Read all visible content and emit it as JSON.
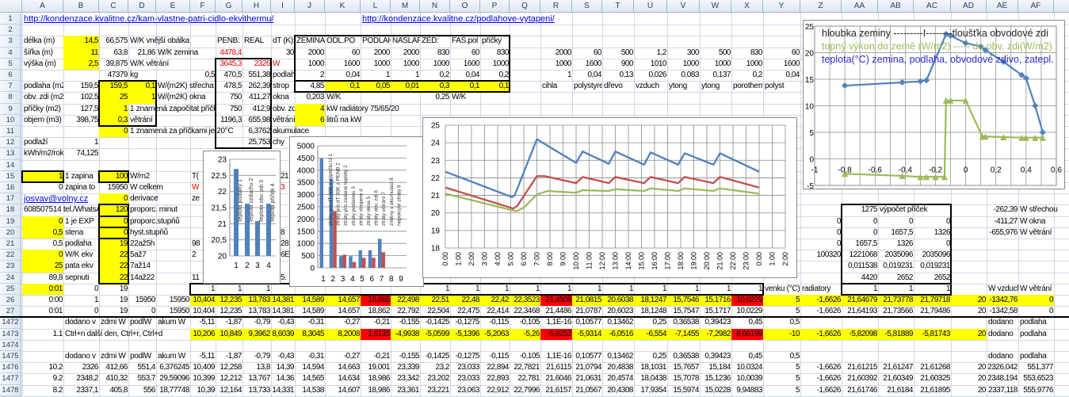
{
  "columns": [
    "A",
    "B",
    "C",
    "D",
    "E",
    "F",
    "G",
    "H",
    "I",
    "J",
    "K",
    "L",
    "M",
    "N",
    "O",
    "P",
    "Q",
    "R",
    "S",
    "T",
    "U",
    "V",
    "W",
    "X",
    "Y",
    "Z",
    "AA",
    "AB",
    "AC",
    "AD",
    "AE",
    "AF"
  ],
  "row_numbers": [
    "1",
    "2",
    "3",
    "4",
    "5",
    "6",
    "7",
    "8",
    "9",
    "10",
    "11",
    "12",
    "13",
    "14",
    "15",
    "16",
    "17",
    "18",
    "19",
    "20",
    "21",
    "22",
    "23",
    "24",
    "25",
    "26",
    "27",
    "1472",
    "1473",
    "1474",
    "1475",
    "1476",
    "1477",
    "1478"
  ],
  "rows": {
    "1": {
      "A": "http://kondenzace.kvalitne.cz/kam-vlastne-patri-cidlo-ekvithermu/",
      "L": "http://kondenzace.kvalitne.cz/podlahove-vytapeni/"
    },
    "3": {
      "A": "délka (m)",
      "B": "14,5",
      "C": "66,575",
      "D": "W/K vnější obálka",
      "G": "PENB:",
      "H": "REAL",
      "I": "dT (K):",
      "J": "ZEMINA",
      "K": "ODL.PO",
      "L": "PODLAHA",
      "M": "NASLAP.",
      "N": "ZEĎ:",
      "O": "FAS.pol",
      "P": "příčky"
    },
    "4": {
      "A": "šířka (m)",
      "B": "11",
      "C": "63,8",
      "D": "21,86",
      "E": "W/K zemina",
      "G": "4478,4",
      "I": "30",
      "J": "2000",
      "K": "60",
      "L": "2000",
      "M": "2000",
      "N": "830",
      "O": "60",
      "P": "830",
      "R": "2000",
      "S": "60",
      "T": "500",
      "U": "1,2",
      "V": "300",
      "W": "500",
      "X": "830",
      "Y": "60"
    },
    "5": {
      "A": "výška (m)",
      "B": "2,5",
      "C": "39,875",
      "D": "W/K větrání",
      "G": "3645,3",
      "H": "2326",
      "I": "W",
      "J": "1000",
      "K": "1600",
      "L": "1000",
      "M": "1000",
      "N": "1000",
      "O": "1600",
      "P": "1000",
      "R": "1000",
      "S": "1600",
      "T": "900",
      "U": "1010",
      "V": "1000",
      "W": "1000",
      "X": "1000",
      "Y": "1600"
    },
    "6": {
      "C": "47379",
      "D": "kg",
      "F": "0,5",
      "G": "470,5",
      "H": "551,38",
      "I": "podlaha",
      "J": "2",
      "K": "0,04",
      "L": "1",
      "M": "1",
      "N": "0,2",
      "O": "0,04",
      "P": "0,2",
      "R": "1",
      "S": "0,04",
      "T": "0,13",
      "U": "0,026",
      "V": "0,083",
      "W": "0,137",
      "X": "0,2",
      "Y": "0,04"
    },
    "7": {
      "A": "podlaha (m2)",
      "B": "159,5",
      "C": "159,5",
      "D": "0,1",
      "E": "W/(m2K) střecha",
      "G": "478,5",
      "H": "262,39",
      "I": "strop",
      "J": "4,85",
      "K": "0,1",
      "L": "0,05",
      "M": "0,01",
      "N": "0,3",
      "O": "0,1",
      "P": "0,1",
      "R": "cihla",
      "S": "polystyren",
      "T": "dřevo",
      "U": "vzduch",
      "V": "ytong",
      "W": "ytong",
      "X": "porotherm",
      "Y": "polyst"
    },
    "8": {
      "A": "obv. zdi (m2)",
      "B": "102,5",
      "C": "25",
      "D": "1",
      "E": "W/(m2K) okna",
      "G": "750",
      "H": "411,27",
      "I": "okna",
      "J": "0,203",
      "K": "W/K",
      "N": "0,25",
      "O": "W/K"
    },
    "9": {
      "A": "příčky (m2)",
      "B": "127,5",
      "C": "1",
      "D": "1 znamená započítat příčky z",
      "G": "750",
      "H": "412,9",
      "I": "obv. zdi",
      "J": "4",
      "K": "kW radiátory 75/65/20"
    },
    "10": {
      "A": "objem (m3)",
      "B": "398,75",
      "C": "0,3",
      "D": "větrání",
      "G": "1196,3",
      "H": "655,98",
      "I": "větrání",
      "J": "6",
      "K": "litrů na kW"
    },
    "11": {
      "C": "0",
      "D": "1 znamená za příčkami je 20°C",
      "H": "6,3762",
      "I": "akumulace"
    },
    "12": {
      "A": "podlaží",
      "B": "1",
      "H": "25,753",
      "I": "chy"
    },
    "13": {
      "A": "kWh/m2/rok",
      "B": "74,125"
    },
    "15": {
      "A": "1",
      "B": "1 zapina",
      "C": "100",
      "D": "W/m2",
      "G": "T(",
      "I": "21"
    },
    "16": {
      "A": "0",
      "B": "zapina to",
      "C": "15950",
      "D": "W celkem",
      "G": "W",
      "I": "3"
    },
    "17": {
      "A": "josvav@volny.cz",
      "C": "0",
      "D": "derivace",
      "G": "ze"
    },
    "18": {
      "A": "608507514 tel./WhatsA",
      "C": "120",
      "D": "proporc. minut",
      "AA": "1275",
      "AB": "výpočet příček",
      "AE": "-262,39",
      "AF": "W střechou"
    },
    "19": {
      "A": "0",
      "B": "1 je EXP",
      "C": "0",
      "D": "proporc.stupňů",
      "Z": "0",
      "AA": "0",
      "AB": "0",
      "AC": "0",
      "AE": "-411,27",
      "AF": "W okna"
    },
    "20": {
      "A": "0,5",
      "B": "stena",
      "C": "0",
      "D": "hyst.stupňů",
      "I": "8",
      "Z": "0",
      "AA": "0",
      "AB": "1657,5",
      "AC": "1326",
      "AE": "-655,976",
      "AF": "W větrání"
    },
    "21": {
      "A": "0,5",
      "B": "podlaha",
      "C": "19",
      "D": "22až5h",
      "G": "98",
      "I": "28",
      "Z": "0",
      "AA": "1657,5",
      "AB": "1326",
      "AC": "0"
    },
    "22": {
      "A": "0",
      "B": "W/K ekv",
      "C": "22",
      "D": "5až7",
      "G": "2",
      "I": "6E",
      "Z": "100320",
      "AA": "1221068",
      "AB": "2035096",
      "AC": "2035096"
    },
    "23": {
      "A": "25",
      "B": "pata ekv",
      "C": "22",
      "D": "7až14",
      "AA": "0,011538",
      "AB": "0,019231",
      "AC": "0,019231"
    },
    "24": {
      "A": "89,8",
      "B": "sepnuti",
      "C": "22",
      "D": "14až22",
      "G": "11",
      "I": "5.",
      "AA": "4420",
      "AB": "2652",
      "AC": "2652"
    },
    "25": {
      "A": "0:01",
      "B": "0",
      "C": "19",
      "F": "1",
      "G": "1",
      "H": "1",
      "N": "1",
      "O": "1",
      "P": "1",
      "Q": "1",
      "R": "1",
      "S": "1",
      "T": "1",
      "U": "1",
      "V": "1",
      "W": "1",
      "X": "1",
      "Y": "venku (°C)",
      "Z": "radiatory",
      "AA": "1",
      "AB": "1",
      "AC": "1",
      "AE": "W vzduch",
      "AF": "W větrání"
    },
    "26": {
      "A": "0:00",
      "B": "1",
      "C": "19",
      "D": "15950",
      "E": "15950",
      "F": "10,404",
      "G": "12,235",
      "H": "13,783",
      "I": "14,381",
      "J": "14,589",
      "K": "14,657",
      "L": "18,865",
      "M": "22,498",
      "N": "22,51",
      "O": "22,48",
      "P": "22,42",
      "Q": "22,3523",
      "R": "21,4508",
      "S": "21,0815",
      "T": "20,6038",
      "U": "18,1247",
      "V": "15,7546",
      "W": "15,1716",
      "X": "10,0229",
      "Y": "5",
      "Z": "-1,6626",
      "AA": "21,64679",
      "AB": "21,73778",
      "AC": "21,79718",
      "AD": "20",
      "AE": "-1342,76",
      "AF": "0"
    },
    "27": {
      "A": "0:01",
      "B": "0",
      "C": "19",
      "D": "0",
      "E": "15950",
      "F": "10,404",
      "G": "12,235",
      "H": "13,783",
      "I": "14,381",
      "J": "14,589",
      "K": "14,657",
      "L": "18,862",
      "M": "22,792",
      "N": "22,504",
      "O": "22,475",
      "P": "22,414",
      "Q": "22,3468",
      "R": "21,4486",
      "S": "21,0787",
      "T": "20,6023",
      "U": "18,1248",
      "V": "15,7547",
      "W": "15,1717",
      "X": "10,0229",
      "Y": "5",
      "Z": "-1,6626",
      "AA": "21,64193",
      "AB": "21,73566",
      "AC": "21,79486",
      "AD": "20",
      "AE": "-1342,58",
      "AF": "0"
    },
    "1472": {
      "B": "dodano v",
      "C": "zdmi W",
      "D": "podlW",
      "E": "akum W",
      "F": "-5,11",
      "G": "-1,87",
      "H": "-0,79",
      "I": "-0,43",
      "J": "-0,31",
      "K": "-0,27",
      "L": "-0,21",
      "M": "-0,155",
      "N": "-0,1425",
      "O": "-0,1275",
      "P": "-0,115",
      "Q": "-0,105",
      "R": "1,1E-16",
      "S": "0,10577",
      "T": "0,13462",
      "U": "0,25",
      "V": "0,36538",
      "W": "0,39423",
      "X": "0,45",
      "Y": "0,5",
      "AE": "dodano",
      "AF": "podlaha"
    },
    "1473": {
      "A": "1.1",
      "B": "Ctrl+n další den, Ctrl+r, Ctrl+d",
      "F": "10,206",
      "G": "10,849",
      "H": "9,3962",
      "I": "8,6039",
      "J": "8,3045",
      "K": "8,2008",
      "L": "1,6135",
      "M": "-4,9938",
      "N": "-5,0599",
      "O": "-5,1396",
      "P": "-5,2063",
      "Q": "-5,26",
      "R": "-5,8252",
      "S": "-5,9314",
      "T": "-6,0516",
      "U": "-6,554",
      "V": "-7,1455",
      "W": "-7,2982",
      "X": "-8,66199",
      "Y": "-10",
      "Z": "-1,6626",
      "AA": "-5,82098",
      "AB": "-5,81889",
      "AC": "-5,81743",
      "AD": "20",
      "AE": "dodano",
      "AF": "podlaha"
    },
    "1475": {
      "B": "dodano v",
      "C": "zdmi W",
      "D": "podlW",
      "E": "akum W",
      "F": "-5,11",
      "G": "-1,87",
      "H": "-0,79",
      "I": "-0,43",
      "J": "-0,31",
      "K": "-0,27",
      "L": "-0,21",
      "M": "-0,155",
      "N": "-0,1425",
      "O": "-0,1275",
      "P": "-0,115",
      "Q": "-0,105",
      "R": "1,1E-16",
      "S": "0,10577",
      "T": "0,13462",
      "U": "0,25",
      "V": "0,36538",
      "W": "0,39423",
      "X": "0,45",
      "Y": "0,5",
      "AE": "dodano",
      "AF": "podlaha"
    },
    "1476": {
      "A": "10.2",
      "B": "2326",
      "C": "412,66",
      "D": "551,4",
      "E": "6,376245",
      "F": "10,409",
      "G": "12,258",
      "H": "13,8",
      "I": "14,39",
      "J": "14,594",
      "K": "14,663",
      "L": "19,001",
      "M": "23,339",
      "N": "23,2",
      "O": "23,033",
      "P": "22,894",
      "Q": "22,7821",
      "R": "21,6115",
      "S": "21,0794",
      "T": "20,4838",
      "U": "18,1031",
      "V": "15,7657",
      "W": "15,184",
      "X": "10,0324",
      "Y": "5",
      "Z": "-1,6626",
      "AA": "21,61215",
      "AB": "21,61247",
      "AC": "21,61268",
      "AD": "20",
      "AE": "2326,042",
      "AF": "551,377"
    },
    "1477": {
      "A": "9.2",
      "B": "2348,2",
      "C": "410,32",
      "D": "553,7",
      "E": "29,59096",
      "F": "10,399",
      "G": "12,212",
      "H": "13,767",
      "I": "14,36",
      "J": "14,565",
      "K": "14,634",
      "L": "18,986",
      "M": "23,342",
      "N": "23,202",
      "O": "23,033",
      "P": "22,893",
      "Q": "22,781",
      "R": "21,6046",
      "S": "21,0631",
      "T": "20,4574",
      "U": "18,0438",
      "V": "15,7078",
      "W": "15,1236",
      "X": "10,0039",
      "Y": "5",
      "Z": "-1,6626",
      "AA": "21,60392",
      "AB": "21,60349",
      "AC": "21,60325",
      "AD": "20",
      "AE": "2348,194",
      "AF": "553,6523"
    },
    "1478": {
      "A": "8.2",
      "B": "2337,1",
      "C": "405,8",
      "D": "556",
      "E": "18,77748",
      "F": "10,39",
      "G": "12,164",
      "H": "13,733",
      "I": "14,331",
      "J": "14,538",
      "K": "14,607",
      "L": "18,986",
      "M": "23,361",
      "N": "23,221",
      "O": "23,063",
      "P": "22,912",
      "Q": "22,7996",
      "R": "21,6157",
      "S": "21,0567",
      "T": "20,4308",
      "U": "17,9354",
      "V": "15,5974",
      "W": "15,0228",
      "X": "9,94883",
      "Y": "5",
      "Z": "-1,6626",
      "AA": "21,61746",
      "AB": "21,6184",
      "AC": "21,61895",
      "AD": "20",
      "AE": "2337,118",
      "AF": "555,9776"
    }
  },
  "colors": {
    "highlight": "#ffff00",
    "alert": "#ff0000",
    "series_blue": "#4f81bd",
    "series_red": "#c0504d",
    "series_green": "#9bbb59"
  },
  "chart_data": [
    {
      "type": "bar",
      "name": "room-temperatures",
      "categories": [
        "1",
        "2",
        "3",
        "4"
      ],
      "values": [
        22.7,
        21.62,
        21.08,
        21.62
      ],
      "bar_labels": [
        "Teplota podlahy 1",
        "Teplota vzduchu 2",
        "Teplota obv. zdi 3",
        "Teplota příček 4"
      ],
      "ylim": [
        20,
        23
      ],
      "yticks": [
        "20",
        "20,5",
        "21",
        "21,5",
        "22",
        "22,5",
        "23"
      ],
      "grid": true
    },
    {
      "type": "bar",
      "name": "heat-losses",
      "categories": [
        "1",
        "2",
        "3",
        "4",
        "5",
        "6",
        "7",
        "8",
        "9"
      ],
      "series": [
        {
          "name": "blue",
          "values": [
            4480,
            3645,
            480,
            480,
            720,
            720,
            1190,
            0,
            0
          ]
        },
        {
          "name": "red",
          "values": [
            0,
            2326,
            540,
            240,
            410,
            410,
            640,
            0,
            0
          ]
        }
      ],
      "bar_labels": [
        "ztráty pro dT 30K z výpočtu U 1",
        "ztráty pro dT 30K z PENB 2",
        "ztráty pro zadané teploty 2",
        "ztráty podlahou 3",
        "ztráty stropem 4",
        "ztráty okna 5",
        "ztráty obv. zdi 6",
        "ztráty větrání 7",
        "změny v akumulaci 8",
        "nepokryté ztráty 9"
      ],
      "ylim": [
        0,
        5000
      ],
      "yticks": [
        "0",
        "500",
        "1000",
        "1500",
        "2000",
        "2500",
        "3000",
        "3500",
        "4000",
        "4500",
        "5000"
      ],
      "grid": true
    },
    {
      "type": "line",
      "name": "daily-temperatures",
      "categories": [
        "0:00",
        "1:00",
        "2:00",
        "3:00",
        "4:00",
        "5:00",
        "6:00",
        "7:00",
        "8:00",
        "9:00",
        "10:00",
        "11:00",
        "12:00",
        "13:00",
        "14:00",
        "15:00",
        "16:00",
        "17:00",
        "18:00",
        "19:00",
        "20:00",
        "21:00",
        "22:00",
        "23:00",
        "0:00",
        "1:00",
        "2:00"
      ],
      "ylim": [
        18,
        25
      ],
      "yticks": [
        "18",
        "19",
        "20",
        "21",
        "22",
        "23",
        "24",
        "25"
      ],
      "grid": true,
      "series": [
        {
          "name": "blue",
          "x": [
            0,
            5.1,
            5.3,
            7,
            10,
            10.5,
            12.5,
            13,
            15.2,
            15.7,
            17.8,
            18.3,
            20.5,
            21,
            24
          ],
          "y": [
            22.35,
            20.9,
            21.0,
            24.2,
            22.85,
            23.5,
            22.8,
            23.5,
            22.75,
            23.45,
            22.75,
            23.4,
            22.75,
            23.4,
            22.35
          ]
        },
        {
          "name": "red",
          "x": [
            0,
            5.2,
            5.5,
            7,
            7.6,
            10,
            10.5,
            12.5,
            13,
            15.2,
            15.7,
            17.8,
            18.3,
            20.5,
            21,
            24
          ],
          "y": [
            21.45,
            20.25,
            20.4,
            22.1,
            22.1,
            21.7,
            22.05,
            21.7,
            22.05,
            21.7,
            22.05,
            21.7,
            22.05,
            21.7,
            22.05,
            21.45
          ]
        },
        {
          "name": "green",
          "x": [
            0,
            5.4,
            6,
            7,
            7.8,
            10,
            10.5,
            12.5,
            13,
            15.2,
            15.7,
            17.8,
            18.3,
            20.5,
            21,
            24
          ],
          "y": [
            21.1,
            20.1,
            20.3,
            21.05,
            21.25,
            21.15,
            21.3,
            21.25,
            21.35,
            21.25,
            21.4,
            21.25,
            21.4,
            21.25,
            21.4,
            21.1
          ]
        }
      ]
    },
    {
      "type": "scatter",
      "name": "wall-profile",
      "title_lines": [
        "hloubka zeminy ---------I--------tloušťka obvodové zdi",
        "topný výkon do země (W/m2) ----- do obv. zdi(W/m2)",
        "teplota(°C) zemina, podlaha, obvodové zdivo, zatepl."
      ],
      "xlim": [
        -1,
        0.6
      ],
      "ylim": [
        -5,
        25
      ],
      "xticks": [
        "-1",
        "-0,8",
        "-0,6",
        "-0,4",
        "-0,2",
        "0",
        "0,2",
        "0,4",
        "0,6"
      ],
      "yticks": [
        "-5",
        "0",
        "5",
        "10",
        "15",
        "20",
        "25"
      ],
      "series": [
        {
          "name": "teplota",
          "x": [
            -0.8,
            -0.42,
            -0.3,
            -0.26,
            -0.13,
            -0.1,
            0,
            0.1,
            0.13,
            0.25,
            0.37,
            0.4,
            0.46,
            0.51
          ],
          "y": [
            13.8,
            14.4,
            14.6,
            14.8,
            23.5,
            23.2,
            21.8,
            21.2,
            20.5,
            18.3,
            15.8,
            15.2,
            10,
            5
          ]
        },
        {
          "name": "topny-vykon",
          "x": [
            -0.8,
            -0.42,
            -0.3,
            -0.26,
            -0.2,
            -0.14,
            -0.13,
            -0.1,
            0,
            0.11,
            0.13,
            0.25,
            0.37,
            0.4,
            0.46,
            0.51
          ],
          "y": [
            -2.8,
            -3.2,
            -3.4,
            -3.4,
            -3.4,
            -3.4,
            11,
            11,
            11,
            4.2,
            4.2,
            4.1,
            4,
            4,
            4,
            4
          ]
        }
      ]
    }
  ]
}
